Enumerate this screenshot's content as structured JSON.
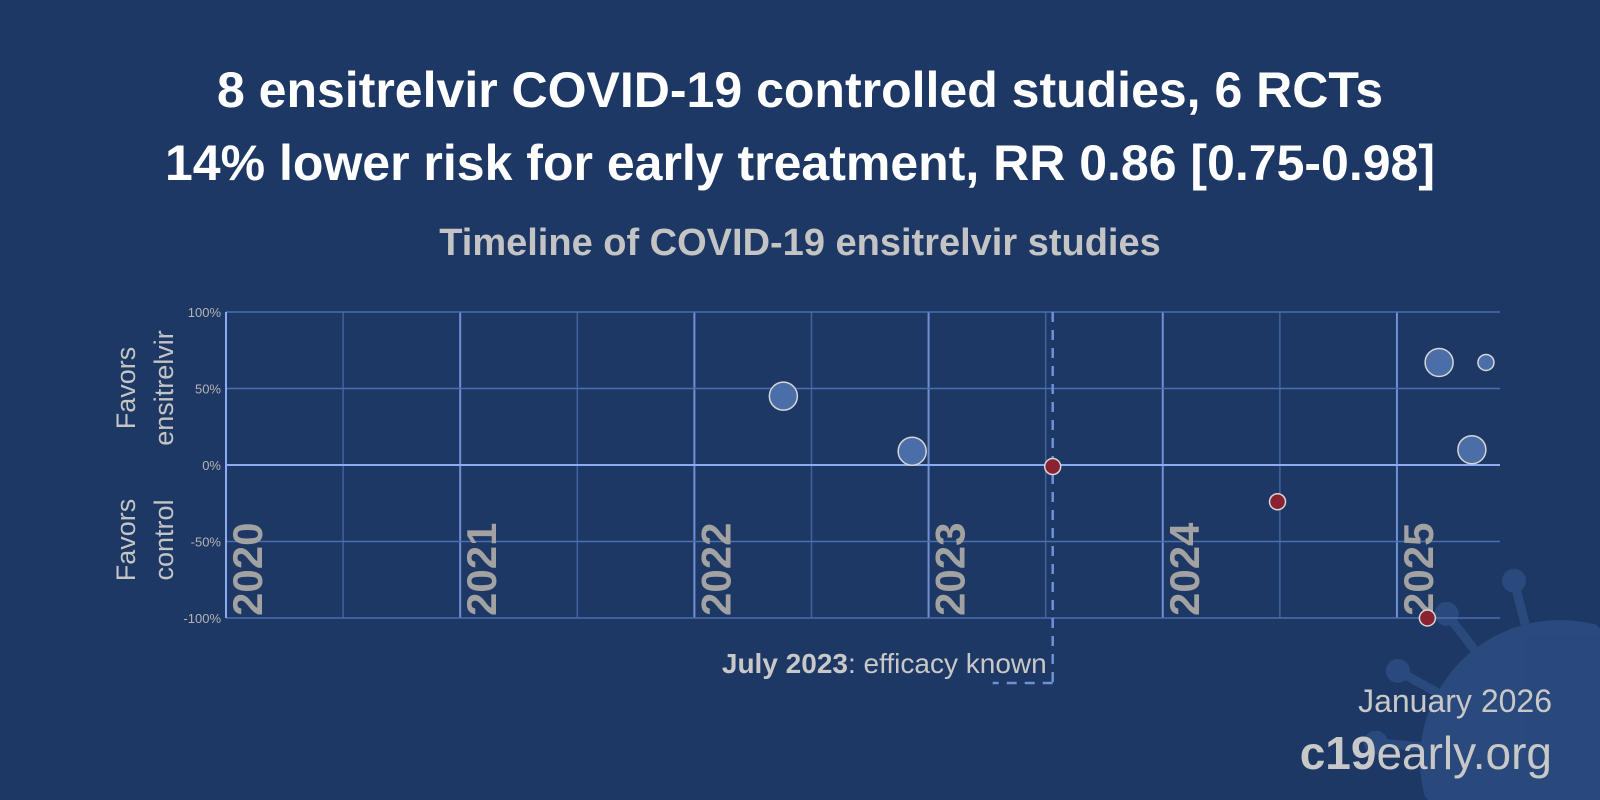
{
  "header": {
    "title_line1": "8 ensitrelvir COVID-19 controlled studies, 6 RCTs",
    "title_line2": "14% lower risk for early treatment, RR 0.86 [0.75-0.98]"
  },
  "chart_data": {
    "type": "scatter",
    "title": "Timeline of COVID-19 ensitrelvir studies",
    "ylabel_top": "Favors ensitrelvir",
    "ylabel_bottom": "Favors control",
    "xlim": [
      2020,
      2025.44
    ],
    "ylim": [
      -100,
      100
    ],
    "x_ticks": [
      "2020",
      "2021",
      "2022",
      "2023",
      "2024",
      "2025"
    ],
    "y_ticks": [
      "100%",
      "50%",
      "0%",
      "-50%",
      "-100%"
    ],
    "grid": true,
    "colors": {
      "favors_treatment": "#4a6fa8",
      "favors_control": "#8b2232",
      "background": "#1d3864"
    },
    "points": [
      {
        "x": 2022.38,
        "y": 45,
        "size": "large"
      },
      {
        "x": 2022.93,
        "y": 9,
        "size": "large"
      },
      {
        "x": 2023.53,
        "y": -1,
        "size": "small"
      },
      {
        "x": 2024.49,
        "y": -24,
        "size": "small"
      },
      {
        "x": 2025.13,
        "y": -100,
        "size": "small"
      },
      {
        "x": 2025.18,
        "y": 67,
        "size": "large"
      },
      {
        "x": 2025.32,
        "y": 10,
        "size": "large"
      },
      {
        "x": 2025.38,
        "y": 67,
        "size": "small"
      }
    ],
    "annotation": {
      "x": 2023.53,
      "bold": "July 2023",
      "text": ": efficacy known"
    }
  },
  "footer": {
    "date": "January 2026",
    "site_bold": "c19",
    "site_rest": "early.org"
  }
}
